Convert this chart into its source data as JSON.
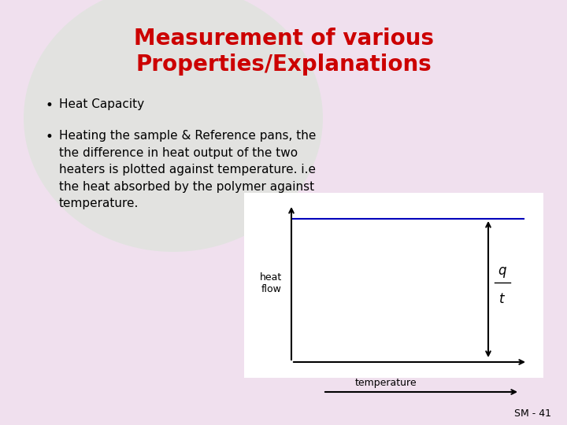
{
  "title_line1": "Measurement of various",
  "title_line2": "Properties/Explanations",
  "title_color": "#cc0000",
  "title_fontsize": 20,
  "bg_color": "#f0e0ee",
  "bullet1": "Heat Capacity",
  "bullet2_lines": [
    "Heating the sample & Reference pans, the",
    "the difference in heat output of the two",
    "heaters is plotted against temperature. i.e",
    "the heat absorbed by the polymer against",
    "temperature."
  ],
  "text_color": "#000000",
  "text_fontsize": 11,
  "footer": "SM - 41",
  "footer_fontsize": 9,
  "heat_flow_label": "heat\nflow",
  "temperature_label": "temperature",
  "line_color": "#0000bb",
  "axis_color": "#000000"
}
